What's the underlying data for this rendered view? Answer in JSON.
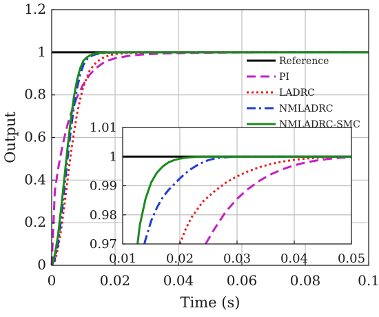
{
  "chart_data": [
    {
      "type": "line",
      "title": "",
      "xlabel": "Time (s)",
      "ylabel": "Output",
      "xlim": [
        0,
        0.1
      ],
      "ylim": [
        0,
        1.2
      ],
      "xticks": [
        0,
        0.02,
        0.04,
        0.06,
        0.08,
        0.1
      ],
      "xtick_labels": [
        "0",
        "0.02",
        "0.04",
        "0.06",
        "0.08",
        "0.1"
      ],
      "yticks": [
        0,
        0.2,
        0.4,
        0.6,
        0.8,
        1,
        1.2
      ],
      "ytick_labels": [
        "0",
        "0.2",
        "0.4",
        "0.6",
        "0.8",
        "1",
        "1.2"
      ],
      "grid": true,
      "legend_position": "right",
      "series": [
        {
          "name": "Reference",
          "color": "#000000",
          "style": "solid",
          "x": [
            0,
            0.1
          ],
          "y": [
            1,
            1
          ]
        },
        {
          "name": "PI",
          "color": "#c61fc6",
          "style": "dash",
          "x": [
            0,
            0.001,
            0.002,
            0.003,
            0.004,
            0.005,
            0.006,
            0.008,
            0.01,
            0.012,
            0.014,
            0.016,
            0.018,
            0.02,
            0.025,
            0.03,
            0.035,
            0.04,
            0.05,
            0.06,
            0.08,
            0.1
          ],
          "y": [
            0,
            0.35,
            0.45,
            0.53,
            0.6,
            0.66,
            0.71,
            0.79,
            0.85,
            0.895,
            0.925,
            0.948,
            0.962,
            0.972,
            0.985,
            0.991,
            0.994,
            0.996,
            0.998,
            0.999,
            1.0,
            1.0
          ]
        },
        {
          "name": "LADRC",
          "color": "#ee1c1c",
          "style": "dot",
          "x": [
            0,
            0.001,
            0.002,
            0.003,
            0.004,
            0.005,
            0.006,
            0.007,
            0.008,
            0.009,
            0.01,
            0.012,
            0.014,
            0.016,
            0.018,
            0.02,
            0.025,
            0.03,
            0.04,
            0.05,
            0.06,
            0.08,
            0.1
          ],
          "y": [
            0,
            0.02,
            0.08,
            0.17,
            0.28,
            0.4,
            0.52,
            0.62,
            0.71,
            0.78,
            0.84,
            0.915,
            0.952,
            0.972,
            0.985,
            0.992,
            0.997,
            0.999,
            1.0,
            1.0,
            1.0,
            1.0,
            1.0
          ]
        },
        {
          "name": "NMLADRC",
          "color": "#1f3bd6",
          "style": "dashdot",
          "x": [
            0,
            0.001,
            0.002,
            0.003,
            0.004,
            0.005,
            0.006,
            0.007,
            0.008,
            0.009,
            0.01,
            0.011,
            0.012,
            0.014,
            0.016,
            0.018,
            0.02,
            0.025,
            0.03,
            0.05,
            0.1
          ],
          "y": [
            0,
            0.03,
            0.1,
            0.22,
            0.36,
            0.5,
            0.63,
            0.74,
            0.83,
            0.895,
            0.94,
            0.965,
            0.98,
            0.991,
            0.996,
            0.998,
            0.999,
            1.0,
            1.0,
            1.0,
            1.0
          ]
        },
        {
          "name": "NMLADRC-SMC",
          "color": "#1b8a1b",
          "style": "solid",
          "x": [
            0,
            0.001,
            0.002,
            0.003,
            0.004,
            0.005,
            0.006,
            0.007,
            0.008,
            0.009,
            0.01,
            0.011,
            0.012,
            0.013,
            0.014,
            0.015,
            0.016,
            0.018,
            0.02,
            0.03,
            0.05,
            0.1
          ],
          "y": [
            0,
            0.05,
            0.14,
            0.27,
            0.41,
            0.55,
            0.68,
            0.79,
            0.87,
            0.925,
            0.96,
            0.975,
            0.985,
            0.991,
            0.995,
            0.997,
            0.998,
            0.999,
            1.0,
            1.0,
            1.0,
            1.0
          ]
        }
      ]
    },
    {
      "type": "line",
      "title": "",
      "xlabel": "",
      "ylabel": "",
      "xlim": [
        0.01,
        0.05
      ],
      "ylim": [
        0.97,
        1.01
      ],
      "xticks": [
        0.01,
        0.02,
        0.03,
        0.04,
        0.05
      ],
      "xtick_labels": [
        "0.01",
        "0.02",
        "0.03",
        "0.04",
        "0.05"
      ],
      "yticks": [
        0.97,
        0.98,
        0.99,
        1,
        1.01
      ],
      "ytick_labels": [
        "0.97",
        "0.98",
        "0.99",
        "1",
        "1.01"
      ],
      "grid": true,
      "series": [
        {
          "name": "Reference",
          "color": "#000000",
          "style": "solid",
          "x": [
            0.01,
            0.05
          ],
          "y": [
            1,
            1
          ]
        },
        {
          "name": "PI",
          "color": "#c61fc6",
          "style": "dash",
          "x": [
            0.0245,
            0.026,
            0.028,
            0.03,
            0.032,
            0.034,
            0.036,
            0.038,
            0.04,
            0.042,
            0.044,
            0.046,
            0.048,
            0.05
          ],
          "y": [
            0.97,
            0.975,
            0.981,
            0.9855,
            0.989,
            0.9918,
            0.994,
            0.9957,
            0.997,
            0.998,
            0.9987,
            0.9992,
            0.9996,
            0.9998
          ]
        },
        {
          "name": "LADRC",
          "color": "#ee1c1c",
          "style": "dot",
          "x": [
            0.02,
            0.021,
            0.022,
            0.024,
            0.026,
            0.028,
            0.03,
            0.032,
            0.034,
            0.036,
            0.038,
            0.04,
            0.042,
            0.044,
            0.046,
            0.048,
            0.05
          ],
          "y": [
            0.97,
            0.975,
            0.979,
            0.9845,
            0.988,
            0.991,
            0.9932,
            0.995,
            0.9964,
            0.9975,
            0.9983,
            0.9989,
            0.9993,
            0.9996,
            0.9998,
            0.9999,
            1.0
          ]
        },
        {
          "name": "NMLADRC",
          "color": "#1f3bd6",
          "style": "dashdot",
          "x": [
            0.0138,
            0.014,
            0.015,
            0.016,
            0.017,
            0.018,
            0.019,
            0.02,
            0.021,
            0.022,
            0.023,
            0.024,
            0.025,
            0.026,
            0.027,
            0.028,
            0.029,
            0.03,
            0.035,
            0.05
          ],
          "y": [
            0.97,
            0.9715,
            0.978,
            0.9825,
            0.986,
            0.9885,
            0.9905,
            0.9925,
            0.9943,
            0.9958,
            0.997,
            0.998,
            0.9988,
            0.9993,
            0.9996,
            0.9998,
            0.9999,
            1.0,
            1.0,
            1.0
          ]
        },
        {
          "name": "NMLADRC-SMC",
          "color": "#1b8a1b",
          "style": "solid",
          "x": [
            0.0126,
            0.013,
            0.014,
            0.015,
            0.016,
            0.017,
            0.018,
            0.019,
            0.02,
            0.021,
            0.022,
            0.023,
            0.024,
            0.025,
            0.03,
            0.05
          ],
          "y": [
            0.97,
            0.9765,
            0.9855,
            0.9912,
            0.9945,
            0.9966,
            0.998,
            0.9988,
            0.9993,
            0.9996,
            0.9998,
            0.9999,
            1.0,
            1.0,
            1.0,
            1.0
          ]
        }
      ]
    }
  ]
}
